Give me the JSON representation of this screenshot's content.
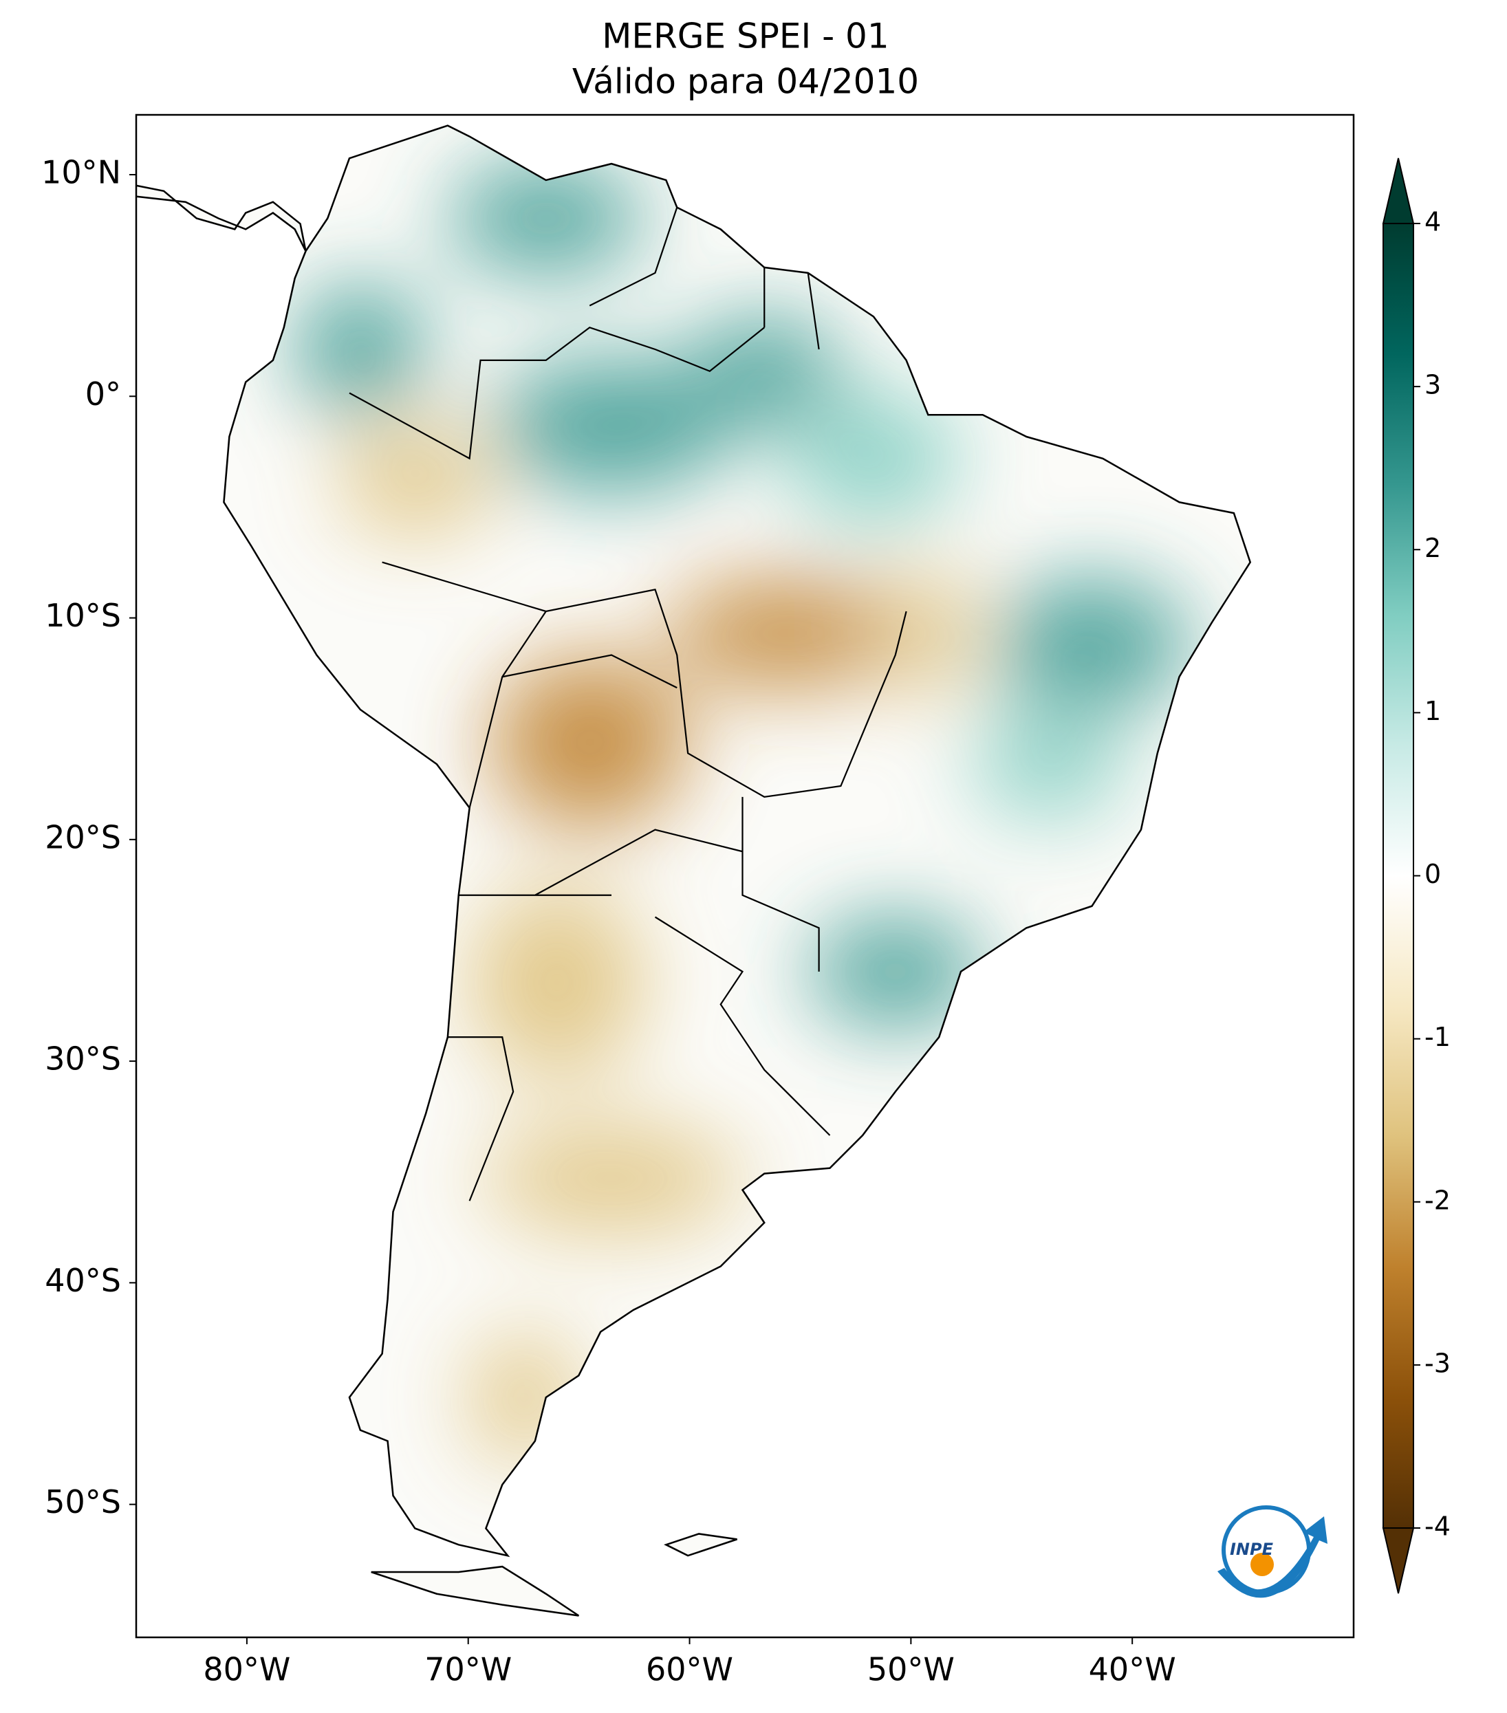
{
  "chart_data": {
    "type": "map",
    "title": "MERGE   SPEI - 01",
    "subtitle": "Válido para 04/2010",
    "xlim": [
      -85,
      -30
    ],
    "ylim": [
      -56,
      12.7
    ],
    "xticks": [
      {
        "value": -80,
        "label": "80°W"
      },
      {
        "value": -70,
        "label": "70°W"
      },
      {
        "value": -60,
        "label": "60°W"
      },
      {
        "value": -50,
        "label": "50°W"
      },
      {
        "value": -40,
        "label": "40°W"
      }
    ],
    "yticks": [
      {
        "value": 10,
        "label": "10°N"
      },
      {
        "value": 0,
        "label": "0°"
      },
      {
        "value": -10,
        "label": "10°S"
      },
      {
        "value": -20,
        "label": "20°S"
      },
      {
        "value": -30,
        "label": "30°S"
      },
      {
        "value": -40,
        "label": "40°S"
      },
      {
        "value": -50,
        "label": "50°S"
      }
    ],
    "colorbar": {
      "lim": [
        -4,
        4
      ],
      "ticks": [
        -4,
        -3,
        -2,
        -1,
        0,
        1,
        2,
        3,
        4
      ],
      "colors": [
        "#543005",
        "#8c510a",
        "#bf812d",
        "#dfc27d",
        "#f6e8c3",
        "#ffffff",
        "#c7eae5",
        "#80cdc1",
        "#35978f",
        "#01665e",
        "#003c30"
      ]
    },
    "logo_text": "INPE"
  }
}
